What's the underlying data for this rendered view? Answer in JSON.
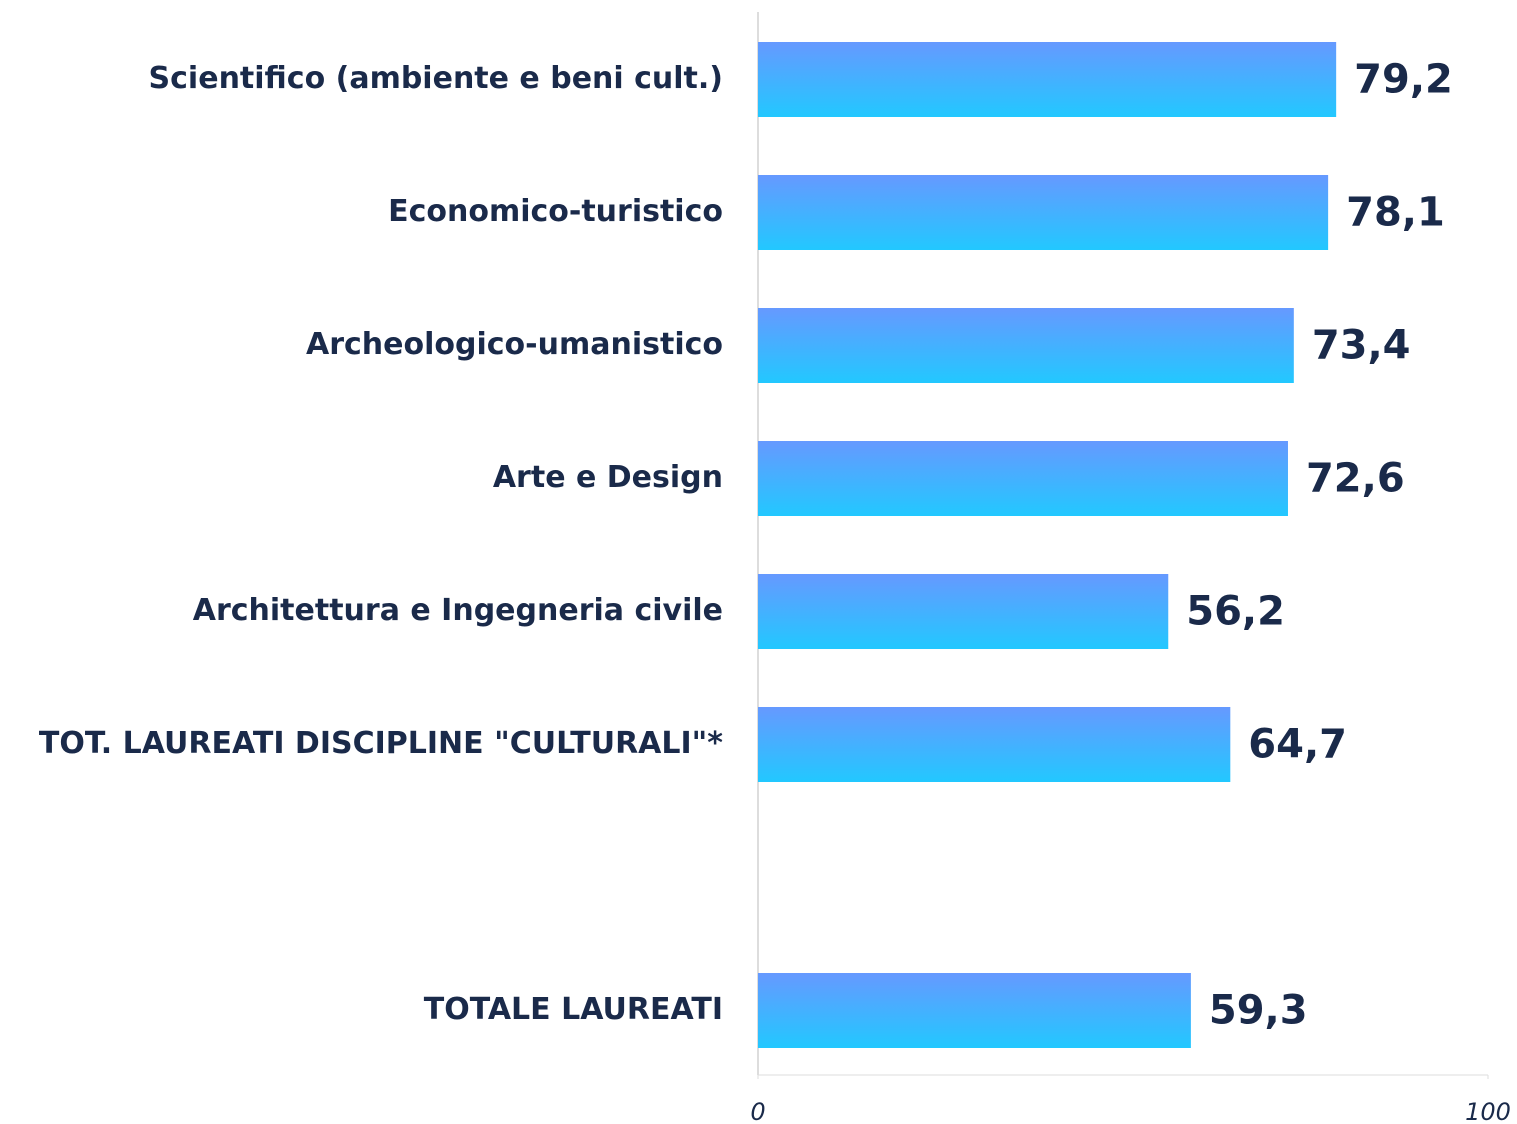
{
  "chart_data": {
    "type": "bar",
    "orientation": "horizontal",
    "categories": [
      "Scientifico (ambiente e beni cult.)",
      "Economico-turistico",
      "Archeologico-umanistico",
      "Arte e Design",
      "Architettura e Ingegneria civile",
      "TOT. LAUREATI DISCIPLINE \"CULTURALI\"*",
      null,
      "TOTALE LAUREATI"
    ],
    "values": [
      79.2,
      78.1,
      73.4,
      72.6,
      56.2,
      64.7,
      null,
      59.3
    ],
    "value_labels": [
      "79,2",
      "78,1",
      "73,4",
      "72,6",
      "56,2",
      "64,7",
      null,
      "59,3"
    ],
    "color": [
      "#6699ff",
      "#22c8ff"
    ],
    "xlim": [
      0,
      100
    ],
    "xticks": [
      0,
      100
    ]
  }
}
